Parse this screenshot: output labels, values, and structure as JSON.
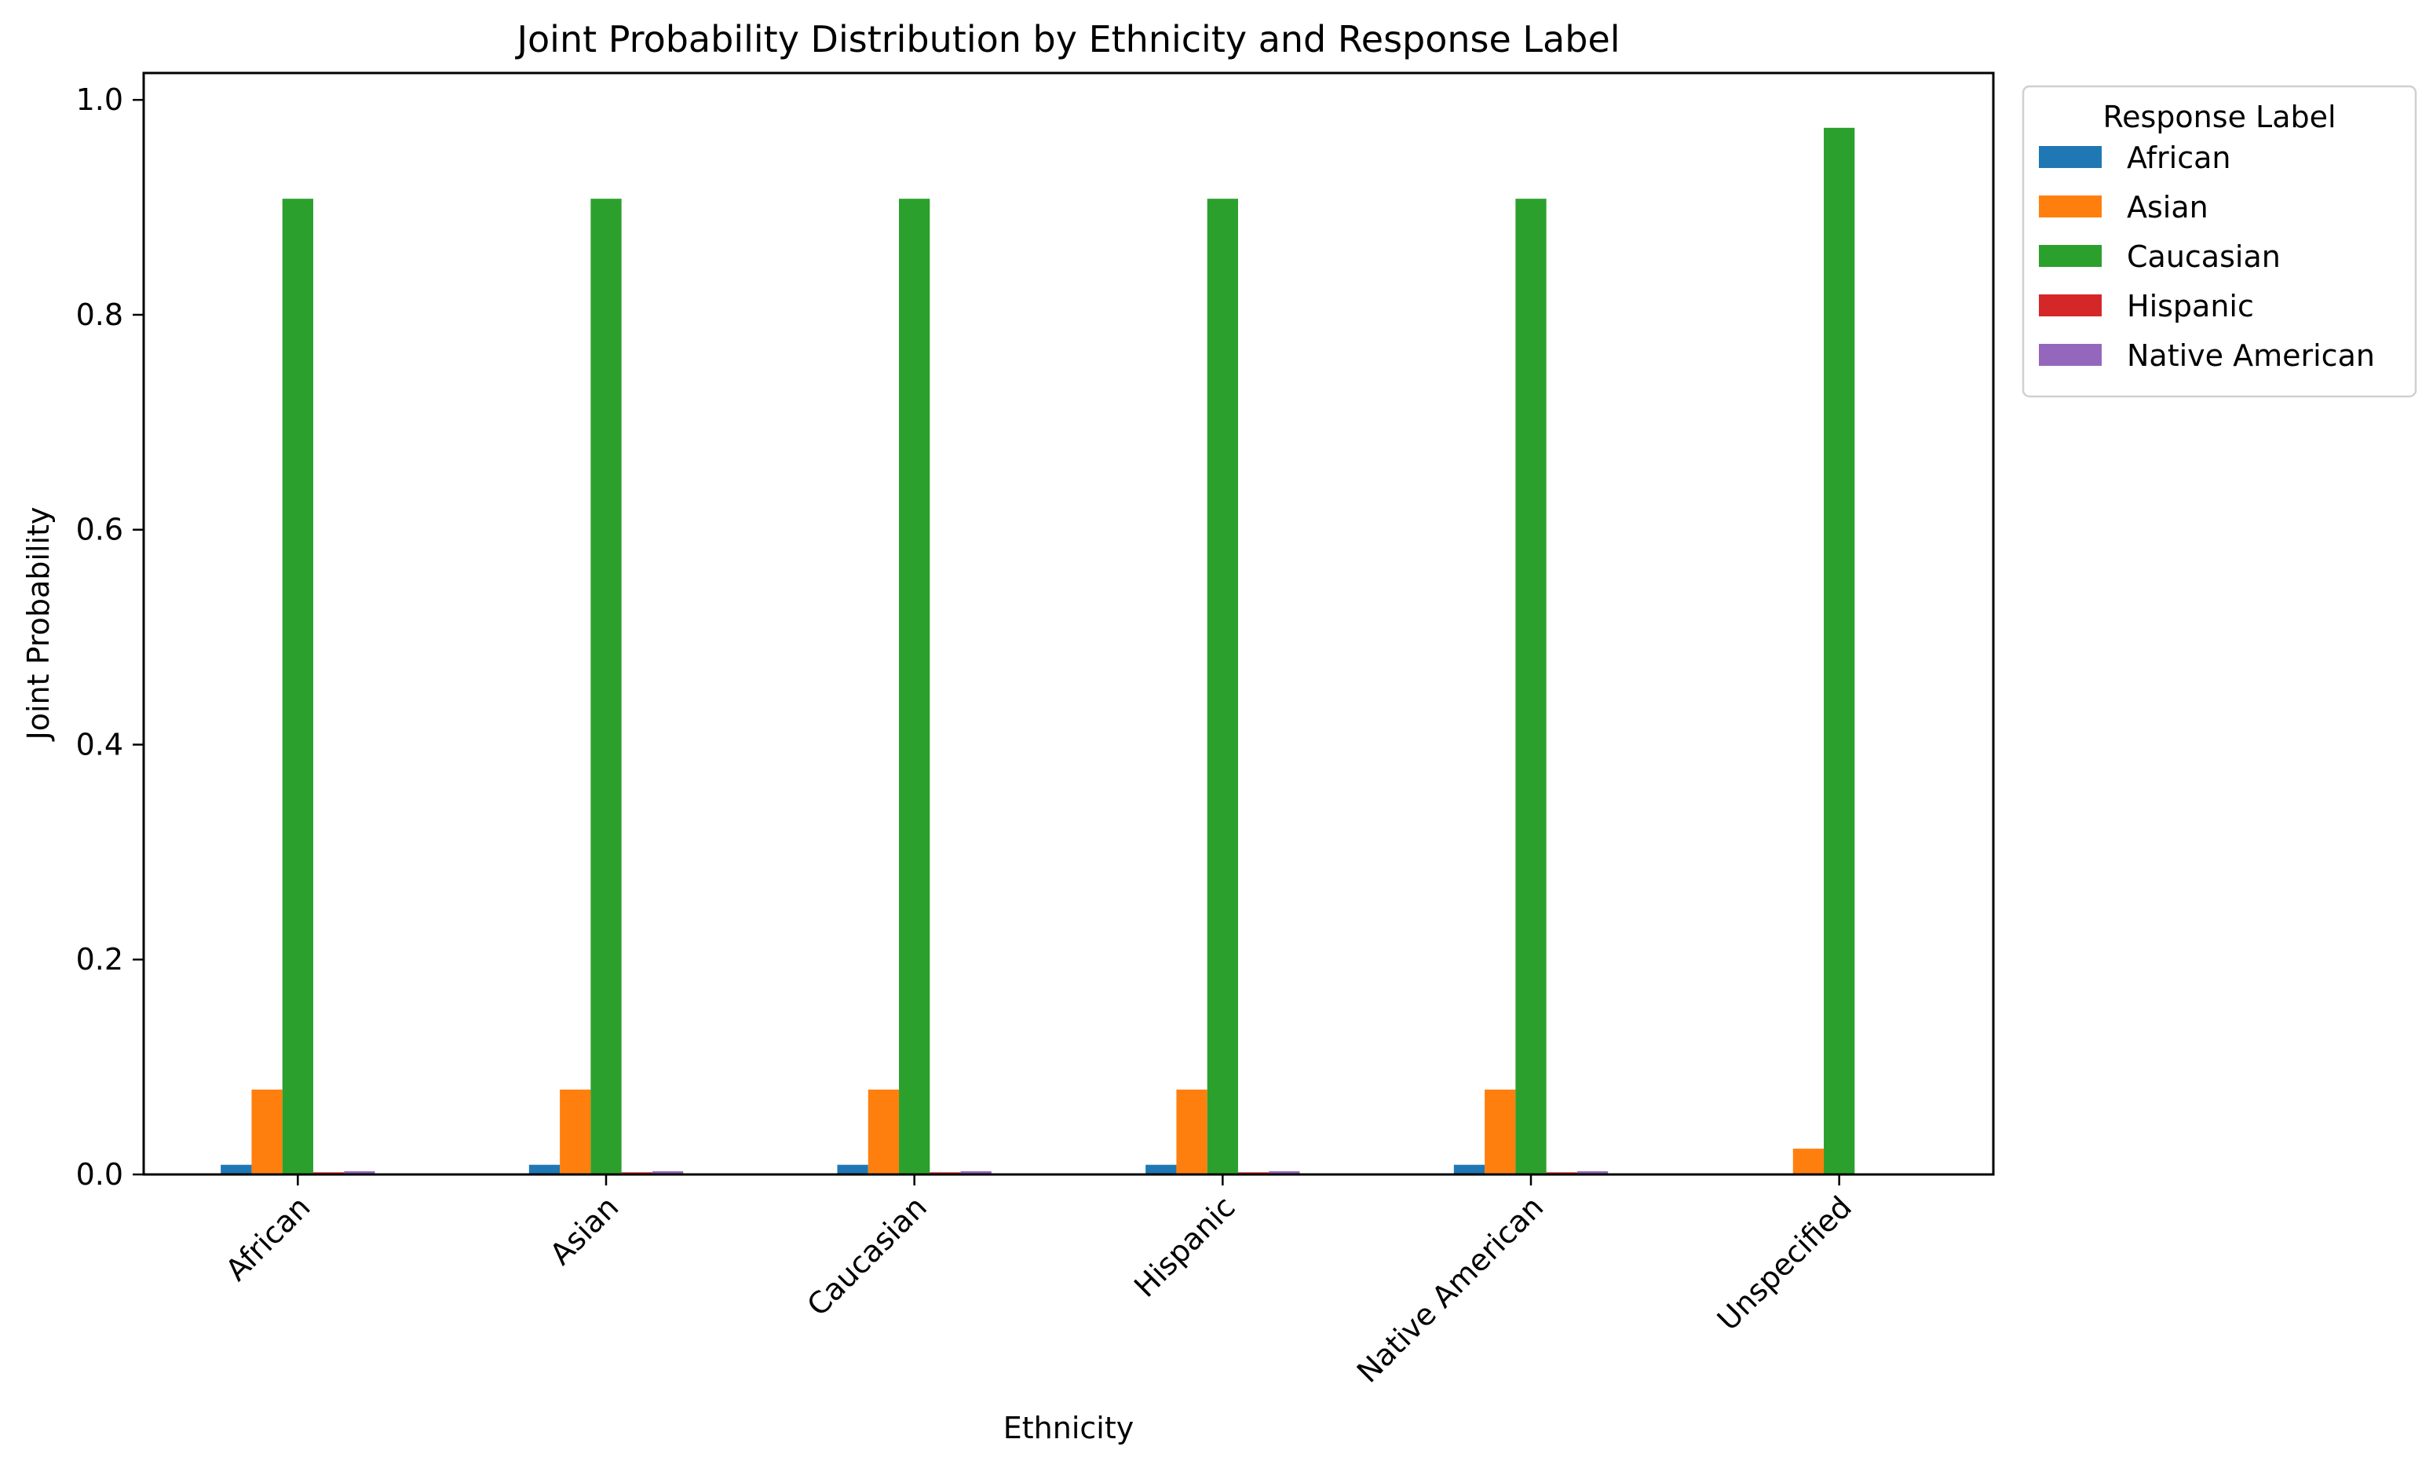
{
  "chart_data": {
    "type": "bar",
    "title": "Joint Probability Distribution by Ethnicity and Response Label",
    "xlabel": "Ethnicity",
    "ylabel": "Joint Probability",
    "ylim": [
      0,
      1.025
    ],
    "yticks": [
      0.0,
      0.2,
      0.4,
      0.6,
      0.8,
      1.0
    ],
    "ytick_labels": [
      "0.0",
      "0.2",
      "0.4",
      "0.6",
      "0.8",
      "1.0"
    ],
    "categories": [
      "African",
      "Asian",
      "Caucasian",
      "Hispanic",
      "Native American",
      "Unspecified"
    ],
    "legend_title": "Response Label",
    "legend_position": "outside-top-right",
    "grid": false,
    "series": [
      {
        "name": "African",
        "color": "#1f77b4",
        "values": [
          0.009,
          0.009,
          0.009,
          0.009,
          0.009,
          0.001
        ]
      },
      {
        "name": "Asian",
        "color": "#ff7f0e",
        "values": [
          0.079,
          0.079,
          0.079,
          0.079,
          0.079,
          0.024
        ]
      },
      {
        "name": "Caucasian",
        "color": "#2ca02c",
        "values": [
          0.908,
          0.908,
          0.908,
          0.908,
          0.908,
          0.974
        ]
      },
      {
        "name": "Hispanic",
        "color": "#d62728",
        "values": [
          0.002,
          0.002,
          0.002,
          0.002,
          0.002,
          0.0
        ]
      },
      {
        "name": "Native American",
        "color": "#9467bd",
        "values": [
          0.003,
          0.003,
          0.003,
          0.003,
          0.003,
          0.0
        ]
      }
    ]
  }
}
